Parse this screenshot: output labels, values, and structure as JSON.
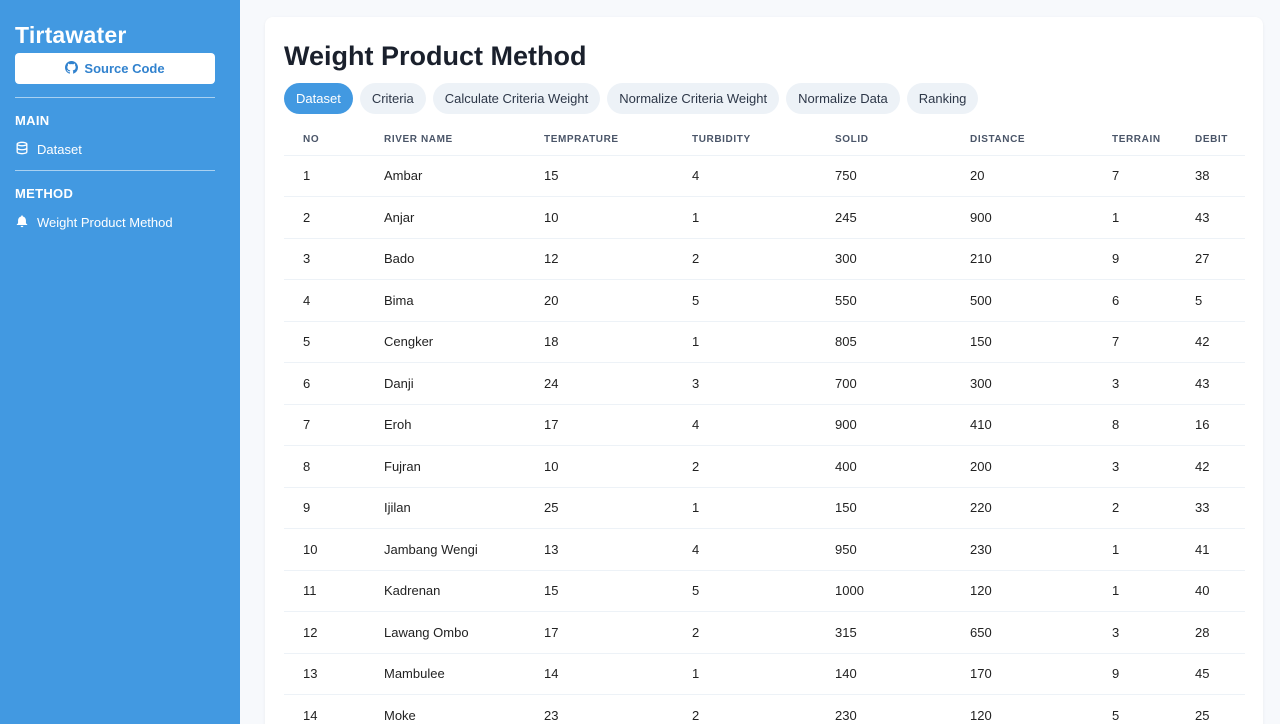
{
  "sidebar": {
    "brand": "Tirtawater",
    "source_label": "Source Code",
    "main_section": "MAIN",
    "main_items": [
      {
        "label": "Dataset",
        "icon": "database-icon"
      }
    ],
    "method_section": "METHOD",
    "method_items": [
      {
        "label": "Weight Product Method",
        "icon": "bell-icon"
      }
    ]
  },
  "page": {
    "title": "Weight Product Method",
    "tabs": [
      {
        "label": "Dataset",
        "active": true
      },
      {
        "label": "Criteria",
        "active": false
      },
      {
        "label": "Calculate Criteria Weight",
        "active": false
      },
      {
        "label": "Normalize Criteria Weight",
        "active": false
      },
      {
        "label": "Normalize Data",
        "active": false
      },
      {
        "label": "Ranking",
        "active": false
      }
    ]
  },
  "table": {
    "headers": [
      "NO",
      "RIVER NAME",
      "TEMPRATURE",
      "TURBIDITY",
      "SOLID",
      "DISTANCE",
      "TERRAIN",
      "DEBIT"
    ],
    "rows": [
      [
        "1",
        "Ambar",
        "15",
        "4",
        "750",
        "20",
        "7",
        "38"
      ],
      [
        "2",
        "Anjar",
        "10",
        "1",
        "245",
        "900",
        "1",
        "43"
      ],
      [
        "3",
        "Bado",
        "12",
        "2",
        "300",
        "210",
        "9",
        "27"
      ],
      [
        "4",
        "Bima",
        "20",
        "5",
        "550",
        "500",
        "6",
        "5"
      ],
      [
        "5",
        "Cengker",
        "18",
        "1",
        "805",
        "150",
        "7",
        "42"
      ],
      [
        "6",
        "Danji",
        "24",
        "3",
        "700",
        "300",
        "3",
        "43"
      ],
      [
        "7",
        "Eroh",
        "17",
        "4",
        "900",
        "410",
        "8",
        "16"
      ],
      [
        "8",
        "Fujran",
        "10",
        "2",
        "400",
        "200",
        "3",
        "42"
      ],
      [
        "9",
        "Ijilan",
        "25",
        "1",
        "150",
        "220",
        "2",
        "33"
      ],
      [
        "10",
        "Jambang Wengi",
        "13",
        "4",
        "950",
        "230",
        "1",
        "41"
      ],
      [
        "11",
        "Kadrenan",
        "15",
        "5",
        "1000",
        "120",
        "1",
        "40"
      ],
      [
        "12",
        "Lawang Ombo",
        "17",
        "2",
        "315",
        "650",
        "3",
        "28"
      ],
      [
        "13",
        "Mambulee",
        "14",
        "1",
        "140",
        "170",
        "9",
        "45"
      ],
      [
        "14",
        "Moke",
        "23",
        "2",
        "230",
        "120",
        "5",
        "25"
      ]
    ]
  },
  "colors": {
    "sidebar": "#4299e1",
    "accent": "#3182ce",
    "tab_inactive": "#edf2f7"
  }
}
